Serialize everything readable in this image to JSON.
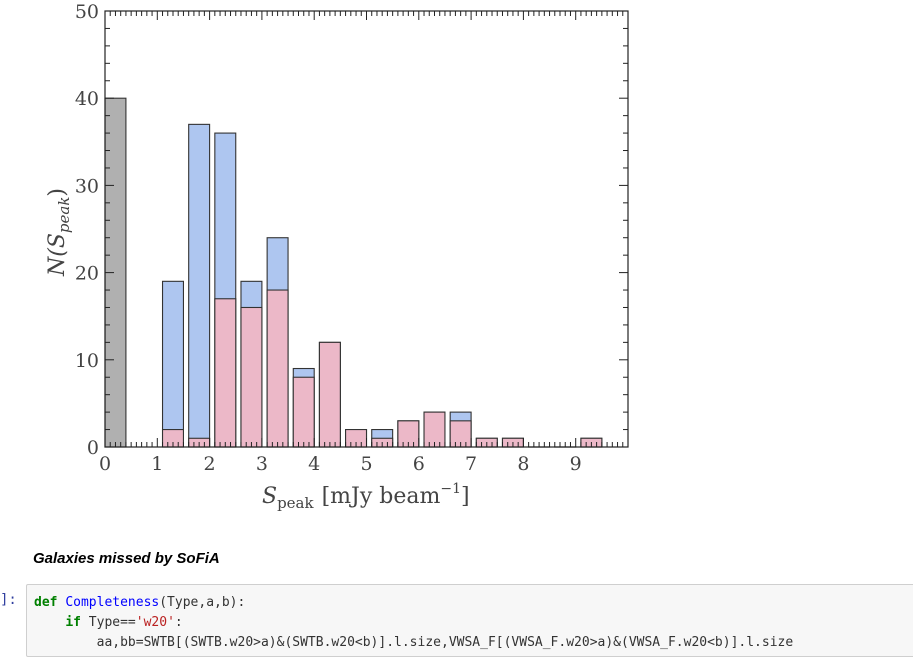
{
  "chart_data": {
    "type": "bar",
    "xlabel_main": "S",
    "xlabel_sub": "peak",
    "xlabel_unit": "[mJy beam",
    "xlabel_exp": "−1",
    "xlabel_close": "]",
    "ylabel_main": "N(S",
    "ylabel_sub": "peak",
    "ylabel_close": ")",
    "xlim": [
      0,
      10
    ],
    "ylim": [
      0,
      50
    ],
    "xticks": [
      "0",
      "1",
      "2",
      "3",
      "4",
      "5",
      "6",
      "7",
      "8",
      "9"
    ],
    "yticks": [
      "0",
      "10",
      "20",
      "30",
      "40",
      "50"
    ],
    "bar_width": 0.4,
    "colors": {
      "grey": "#b0b0b0",
      "blue": "#aec6f0",
      "pink": "#ecb8c8",
      "edge": "#333333"
    },
    "series": [
      {
        "color_key": "grey",
        "x": [
          0.2
        ],
        "values": [
          40
        ]
      },
      {
        "color_key": "blue",
        "x": [
          1.3,
          1.8,
          2.3,
          2.8,
          3.3,
          3.8,
          4.3,
          4.8,
          5.3,
          5.8,
          6.3,
          6.8,
          7.3,
          7.8,
          8.3,
          8.8,
          9.3
        ],
        "values": [
          19,
          37,
          36,
          19,
          24,
          9,
          12,
          2,
          2,
          3,
          4,
          4,
          1,
          1,
          0,
          0,
          1
        ]
      },
      {
        "color_key": "pink",
        "x": [
          1.3,
          1.8,
          2.3,
          2.8,
          3.3,
          3.8,
          4.3,
          4.8,
          5.3,
          5.8,
          6.3,
          6.8,
          7.3,
          7.8,
          8.3,
          8.8,
          9.3
        ],
        "values": [
          2,
          1,
          17,
          16,
          18,
          8,
          12,
          2,
          1,
          3,
          4,
          3,
          1,
          1,
          0,
          0,
          1
        ]
      }
    ]
  },
  "markdown": {
    "heading": "Galaxies missed by SoFiA"
  },
  "code_cell": {
    "prompt": "]:",
    "line1": {
      "kw": "def",
      "fn": "Completeness",
      "rest": "(Type,a,b):"
    },
    "line2": {
      "indent": "    ",
      "kw": "if",
      "pre": " Type==",
      "str": "'w20'",
      "post": ":"
    },
    "line3": "        aa,bb=SWTB[(SWTB.w20>a)&(SWTB.w20<b)].l.size,VWSA_F[(VWSA_F.w20>a)&(VWSA_F.w20<b)].l.size"
  }
}
